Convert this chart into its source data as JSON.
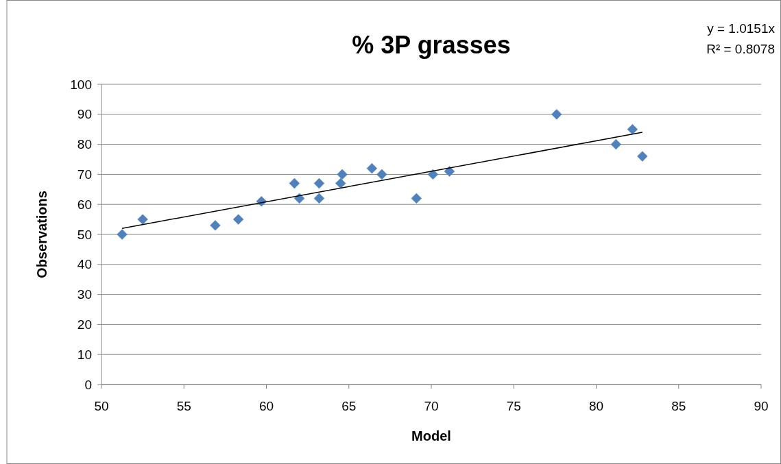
{
  "chart_data": {
    "type": "scatter",
    "title": "% 3P grasses",
    "xlabel": "Model",
    "ylabel": "Observations",
    "annotations": [
      "y = 1.0151x",
      "R² = 0.8078"
    ],
    "series": [
      {
        "color": "#4f81bd",
        "marker": "diamond",
        "x": [
          51.25,
          52.5,
          56.9,
          58.3,
          59.7,
          61.7,
          62.0,
          63.2,
          63.2,
          64.5,
          64.6,
          66.4,
          67.0,
          69.1,
          70.1,
          71.1,
          77.6,
          81.2,
          82.2,
          82.8
        ],
        "values": [
          50,
          55,
          53,
          55,
          61,
          67,
          62,
          67,
          62,
          67,
          70,
          72,
          70,
          62,
          70,
          71,
          90,
          80,
          85,
          76
        ]
      },
      {
        "type": "line",
        "color": "#000000",
        "marker": "none",
        "line_style": "solid",
        "x": [
          51.25,
          82.8
        ],
        "values": [
          52.0,
          84.0
        ]
      }
    ],
    "xlim": [
      50,
      90
    ],
    "xticks": [
      50,
      55,
      60,
      65,
      70,
      75,
      80,
      85,
      90
    ],
    "ylim": [
      0,
      100
    ],
    "yticks": [
      0,
      10,
      20,
      30,
      40,
      50,
      60,
      70,
      80,
      90,
      100
    ],
    "grid": "y"
  }
}
